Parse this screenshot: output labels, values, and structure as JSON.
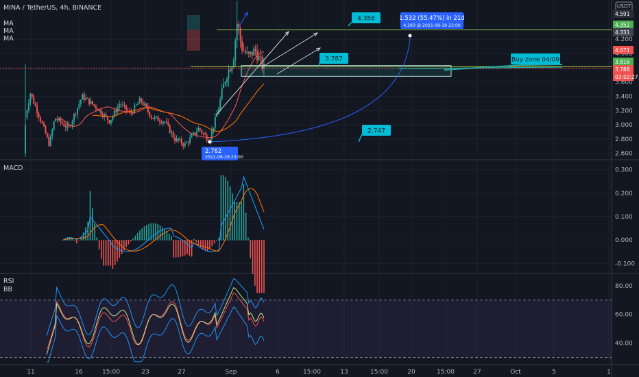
{
  "header": {
    "symbol": "MINA / TetherUS, 4h, BINANCE",
    "currency": "USDT"
  },
  "indicators": {
    "ma_labels": [
      "MA",
      "MA",
      "MA"
    ],
    "macd_label": "MACD",
    "rsi_label": "RSI",
    "bb_label": "BB"
  },
  "colors": {
    "bg": "#131722",
    "up": "#26a69a",
    "down": "#ef5350",
    "grid": "#1e222d",
    "text": "#b2b5be",
    "macd": "#2196f3",
    "signal": "#ff6d00",
    "rsi": "#7e57c2"
  },
  "chart_data": {
    "type": "candlestick",
    "timeframe": "4h",
    "price_axis": {
      "ticks": [
        4.2,
        4.0,
        3.8,
        3.6,
        3.4,
        3.2,
        3.0,
        2.8,
        2.6
      ],
      "tick_labels": [
        "4.200",
        "4.000",
        "3.800",
        "3.600",
        "3.400",
        "3.200",
        "3.000",
        "2.800",
        "2.600"
      ],
      "range": [
        2.52,
        4.75
      ]
    },
    "x_ticks": [
      "11",
      "16",
      "15:00",
      "23",
      "27",
      "Sep",
      "6",
      "15:00",
      "13",
      "15:00",
      "20",
      "15:00",
      "27",
      "Oct",
      "5",
      "1"
    ],
    "price_badges": [
      {
        "value": "4.591",
        "kind": "plain"
      },
      {
        "value": "4.352",
        "kind": "green"
      },
      {
        "value": "4.331",
        "kind": "gray"
      },
      {
        "value": "4.071",
        "kind": "red"
      },
      {
        "value": "3.816",
        "kind": "green"
      },
      {
        "value": "3.788",
        "kind": "red"
      },
      {
        "value": "03:02:27",
        "kind": "red-countdown"
      }
    ],
    "annotations": [
      {
        "text": "4.358",
        "kind": "callout"
      },
      {
        "text": "3.787",
        "kind": "callout"
      },
      {
        "text": "Buy zone 04/09",
        "kind": "callout"
      },
      {
        "text": "2.747",
        "kind": "callout"
      },
      {
        "text": "2.762",
        "sub": "2021-08-29 23:00",
        "kind": "price-label"
      },
      {
        "text": "1.532 (55.47%) in 21d",
        "sub": "4.293 @ 2021-09-19  23:00",
        "kind": "forecast"
      }
    ],
    "levels": {
      "resistance": 4.331,
      "support": 3.816,
      "buy_zone": [
        3.68,
        3.83
      ],
      "current": 3.788
    },
    "macd": {
      "ticks": [
        "0.300",
        "0.200",
        "0.100",
        "0.000",
        "-0.100"
      ],
      "tick_values": [
        0.3,
        0.2,
        0.1,
        0.0,
        -0.1
      ],
      "range": [
        -0.14,
        0.34
      ]
    },
    "rsi": {
      "ticks": [
        "80.00",
        "60.00",
        "40.00"
      ],
      "tick_values": [
        80,
        60,
        40
      ],
      "bands": [
        70,
        30
      ],
      "range": [
        26,
        88
      ]
    }
  }
}
